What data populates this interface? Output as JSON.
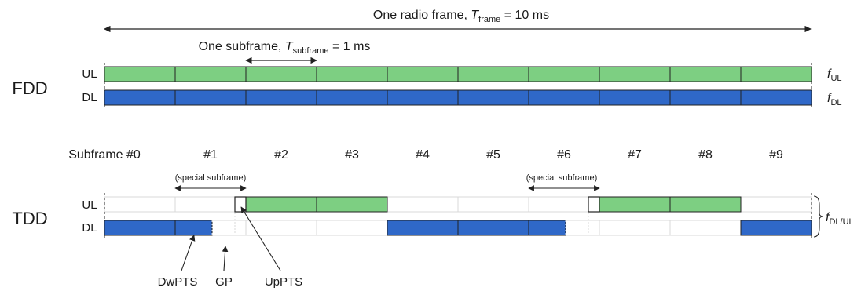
{
  "frame": {
    "prefix": "One radio frame, ",
    "symbol": "T",
    "subscript": "frame",
    "suffix": " = 10 ms"
  },
  "subframe": {
    "prefix": "One subframe, ",
    "symbol": "T",
    "subscript": "subframe",
    "suffix": " = 1 ms"
  },
  "fdd": {
    "label": "FDD",
    "ul_label": "UL",
    "dl_label": "DL",
    "f_ul": {
      "symbol": "f",
      "sub": "UL"
    },
    "f_dl": {
      "symbol": "f",
      "sub": "DL"
    }
  },
  "subframe_labels": [
    "Subframe #0",
    "#1",
    "#2",
    "#3",
    "#4",
    "#5",
    "#6",
    "#7",
    "#8",
    "#9"
  ],
  "special_subframe_label": "(special subframe)",
  "tdd": {
    "label": "TDD",
    "ul_label": "UL",
    "dl_label": "DL",
    "f_dlul": {
      "symbol": "f",
      "sub": "DL/UL"
    },
    "ul_full_subframes": [
      2,
      3,
      7,
      8
    ],
    "dl_full_subframes": [
      0,
      4,
      5,
      9
    ],
    "special_subframes": [
      1,
      6
    ]
  },
  "callouts": {
    "dwpts": "DwPTS",
    "gp": "GP",
    "uppts": "UpPTS"
  },
  "colors": {
    "uplink": "#7dcf82",
    "downlink": "#2f68c8",
    "outline": "#222222",
    "ghost": "#d8d8d8"
  }
}
